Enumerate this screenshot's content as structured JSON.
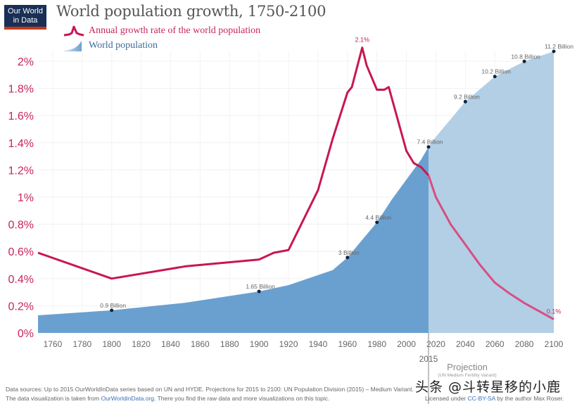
{
  "logo": {
    "line1": "Our World",
    "line2": "in Data"
  },
  "title": "World population growth, 1750-2100",
  "legend": {
    "growth_label": "Annual growth rate of the world population",
    "population_label": "World population"
  },
  "colors": {
    "growth_line": "#c8174f",
    "growth_line_projection": "#d84e80",
    "population_fill": "#6aa0d0",
    "population_fill_projection": "#b2cfe6",
    "axis_text": "#c8245a",
    "label_text": "#666666"
  },
  "chart_data": {
    "type": "area+line",
    "title": "World population growth, 1750-2100",
    "x_ticks": [
      1760,
      1780,
      1800,
      1820,
      1840,
      1860,
      1880,
      1900,
      1920,
      1940,
      1960,
      1980,
      2000,
      2020,
      2040,
      2060,
      2080,
      2100
    ],
    "xlim": [
      1750,
      2100
    ],
    "y_ticks": [
      "0%",
      "0.2%",
      "0.4%",
      "0.6%",
      "0.8%",
      "1%",
      "1.2%",
      "1.4%",
      "1.6%",
      "1.8%",
      "2%"
    ],
    "y_tick_values": [
      0,
      0.2,
      0.4,
      0.6,
      0.8,
      1.0,
      1.2,
      1.4,
      1.6,
      1.8,
      2.0
    ],
    "ylim_growth_pct": [
      0,
      2.0
    ],
    "ylim_population_billion": [
      0,
      11.6
    ],
    "grid": true,
    "projection_start_year": 2015,
    "projection_label": "Projection",
    "projection_sublabel": "(UN Medium Fertility Variant)",
    "projection_year_label": "2015",
    "series": [
      {
        "name": "Annual growth rate of the world population",
        "unit": "%",
        "points": [
          [
            1750,
            0.59
          ],
          [
            1800,
            0.4
          ],
          [
            1850,
            0.49
          ],
          [
            1900,
            0.54
          ],
          [
            1910,
            0.59
          ],
          [
            1920,
            0.61
          ],
          [
            1940,
            1.05
          ],
          [
            1950,
            1.43
          ],
          [
            1960,
            1.77
          ],
          [
            1963,
            1.81
          ],
          [
            1970,
            2.1
          ],
          [
            1973,
            1.97
          ],
          [
            1980,
            1.79
          ],
          [
            1985,
            1.79
          ],
          [
            1988,
            1.81
          ],
          [
            2000,
            1.34
          ],
          [
            2005,
            1.25
          ],
          [
            2010,
            1.22
          ],
          [
            2015,
            1.16
          ],
          [
            2020,
            1.0
          ],
          [
            2030,
            0.8
          ],
          [
            2040,
            0.65
          ],
          [
            2050,
            0.5
          ],
          [
            2060,
            0.37
          ],
          [
            2070,
            0.29
          ],
          [
            2080,
            0.22
          ],
          [
            2090,
            0.16
          ],
          [
            2100,
            0.1
          ]
        ],
        "annotations": [
          {
            "x": 1970,
            "y": 2.1,
            "label": "2.1%"
          },
          {
            "x": 2100,
            "y": 0.1,
            "label": "0.1%"
          }
        ]
      },
      {
        "name": "World population",
        "unit": "billion",
        "points": [
          [
            1750,
            0.7
          ],
          [
            1800,
            0.9
          ],
          [
            1850,
            1.2
          ],
          [
            1900,
            1.65
          ],
          [
            1920,
            1.9
          ],
          [
            1940,
            2.3
          ],
          [
            1950,
            2.5
          ],
          [
            1960,
            3.0
          ],
          [
            1970,
            3.7
          ],
          [
            1980,
            4.4
          ],
          [
            1990,
            5.3
          ],
          [
            2000,
            6.1
          ],
          [
            2010,
            6.9
          ],
          [
            2015,
            7.4
          ],
          [
            2020,
            7.8
          ],
          [
            2030,
            8.5
          ],
          [
            2040,
            9.2
          ],
          [
            2050,
            9.7
          ],
          [
            2060,
            10.2
          ],
          [
            2070,
            10.5
          ],
          [
            2080,
            10.8
          ],
          [
            2090,
            11.0
          ],
          [
            2100,
            11.2
          ]
        ],
        "annotations": [
          {
            "x": 1800,
            "y": 0.9,
            "label": "0.9 Billion"
          },
          {
            "x": 1900,
            "y": 1.65,
            "label": "1.65 Billion"
          },
          {
            "x": 1960,
            "y": 3.0,
            "label": "3 Billion"
          },
          {
            "x": 1980,
            "y": 4.4,
            "label": "4.4 Billion"
          },
          {
            "x": 2015,
            "y": 7.4,
            "label": "7.4 Billion"
          },
          {
            "x": 2040,
            "y": 9.2,
            "label": "9.2 Billion"
          },
          {
            "x": 2060,
            "y": 10.2,
            "label": "10.2 Billion"
          },
          {
            "x": 2080,
            "y": 10.8,
            "label": "10.8 Billion"
          },
          {
            "x": 2100,
            "y": 11.2,
            "label": "11.2 Billion"
          }
        ]
      }
    ]
  },
  "footer": {
    "line1": "Data sources:  Up to 2015 OurWorldInData series based on UN and HYDE. Projections for 2015 to 2100: UN Population Division (2015) – Medium Variant.",
    "line2_prefix": "The data visualization is taken from ",
    "line2_link": "OurWorldinData.org",
    "line2_suffix": ". There you find the raw data and more visualizations on this topic.",
    "license_prefix": "Licensed under ",
    "license_link": "CC-BY-SA",
    "license_suffix": " by the author Max Roser."
  },
  "watermark": "头条 @斗转星移的小鹿"
}
